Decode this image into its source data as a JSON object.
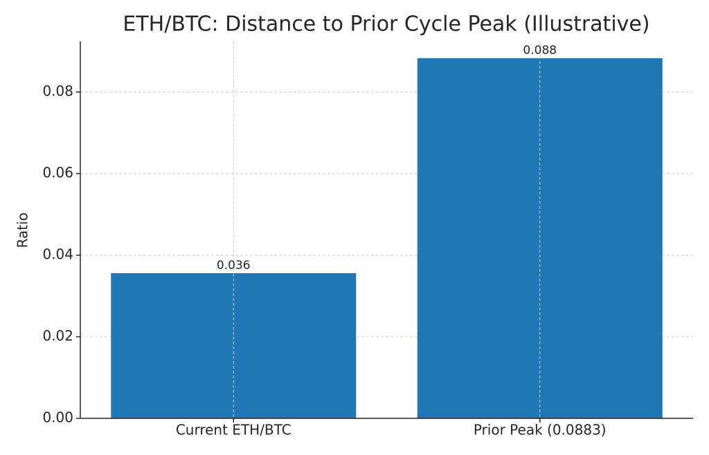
{
  "chart_data": {
    "type": "bar",
    "title": "ETH/BTC: Distance to Prior Cycle Peak (Illustrative)",
    "y_label": "Ratio",
    "categories": [
      "Current ETH/BTC",
      "Prior Peak (0.0883)"
    ],
    "values": [
      0.0356,
      0.0883
    ],
    "value_labels": [
      "0.036",
      "0.088"
    ],
    "color": "#1f77b4",
    "ylim": [
      0,
      0.0924
    ],
    "yticks": [
      {
        "value": 0,
        "label": "0.00"
      },
      0.02,
      0.04,
      0.06,
      0.08
    ],
    "grid": true
  }
}
